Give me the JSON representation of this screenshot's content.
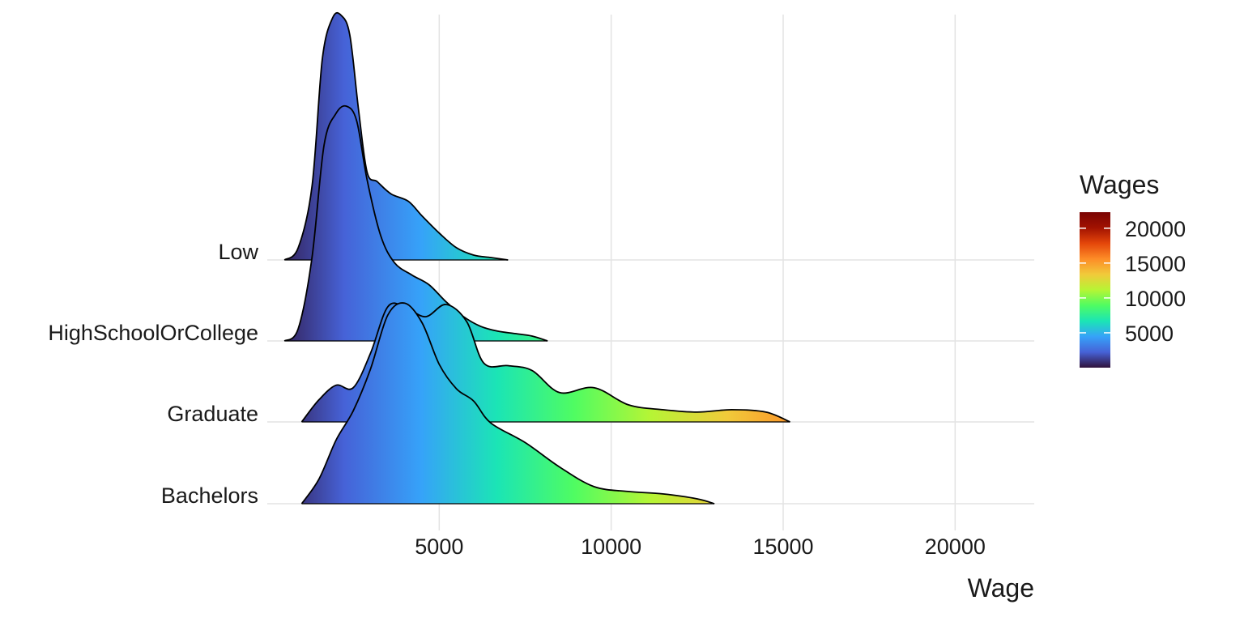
{
  "chart_data": {
    "type": "ridgeline",
    "xlabel": "Wage",
    "ylabel": "",
    "title": "",
    "xlim": [
      0,
      22300
    ],
    "x_ticks": [
      5000,
      10000,
      15000,
      20000
    ],
    "x_tick_labels": [
      "5000",
      "10000",
      "15000",
      "20000"
    ],
    "grid": true,
    "categories": [
      "Low",
      "HighSchoolOrCollege",
      "Graduate",
      "Bachelors"
    ],
    "series": [
      {
        "name": "Low",
        "x": [
          500,
          900,
          1300,
          1600,
          1900,
          2150,
          2400,
          2650,
          2900,
          3200,
          3600,
          4100,
          4500,
          5000,
          5500,
          6000,
          6500,
          7000
        ],
        "density": [
          0.0,
          0.05,
          0.3,
          0.82,
          0.99,
          1.0,
          0.92,
          0.62,
          0.36,
          0.32,
          0.27,
          0.24,
          0.18,
          0.11,
          0.05,
          0.02,
          0.01,
          0.0
        ]
      },
      {
        "name": "HighSchoolOrCollege",
        "x": [
          500,
          900,
          1300,
          1650,
          2000,
          2300,
          2600,
          2900,
          3300,
          3700,
          4200,
          4700,
          5200,
          5700,
          6200,
          6700,
          7200,
          7700,
          8150
        ],
        "density": [
          0.0,
          0.05,
          0.34,
          0.8,
          0.93,
          0.96,
          0.9,
          0.66,
          0.43,
          0.32,
          0.27,
          0.23,
          0.16,
          0.1,
          0.06,
          0.04,
          0.03,
          0.02,
          0.0
        ]
      },
      {
        "name": "Graduate",
        "x": [
          1000,
          1500,
          2000,
          2500,
          3000,
          3500,
          4000,
          4600,
          5200,
          5800,
          6300,
          7000,
          7700,
          8500,
          9500,
          10500,
          11500,
          12500,
          13500,
          14500,
          15200
        ],
        "density": [
          0.0,
          0.09,
          0.15,
          0.14,
          0.28,
          0.47,
          0.47,
          0.43,
          0.48,
          0.41,
          0.24,
          0.23,
          0.21,
          0.12,
          0.14,
          0.07,
          0.05,
          0.04,
          0.05,
          0.04,
          0.0
        ]
      },
      {
        "name": "Bachelors",
        "x": [
          1000,
          1500,
          2000,
          2500,
          3000,
          3500,
          4000,
          4500,
          5000,
          5500,
          6000,
          6500,
          7500,
          8500,
          9500,
          10500,
          11500,
          12500,
          13000
        ],
        "density": [
          0.0,
          0.1,
          0.26,
          0.38,
          0.55,
          0.77,
          0.82,
          0.74,
          0.57,
          0.47,
          0.42,
          0.33,
          0.25,
          0.15,
          0.07,
          0.05,
          0.04,
          0.02,
          0.0
        ]
      }
    ],
    "legend": {
      "title": "Wages",
      "placement": "right",
      "ticks": [
        5000,
        10000,
        15000,
        20000
      ],
      "tick_labels": [
        "5000",
        "10000",
        "15000",
        "20000"
      ],
      "range": [
        0,
        22300
      ],
      "colormap": [
        "#30123b",
        "#4662d7",
        "#36a2f9",
        "#1be5b5",
        "#4ffc62",
        "#b6f535",
        "#f1ca3a",
        "#fd8c27",
        "#e4460a",
        "#a11201",
        "#7a0403"
      ]
    }
  }
}
